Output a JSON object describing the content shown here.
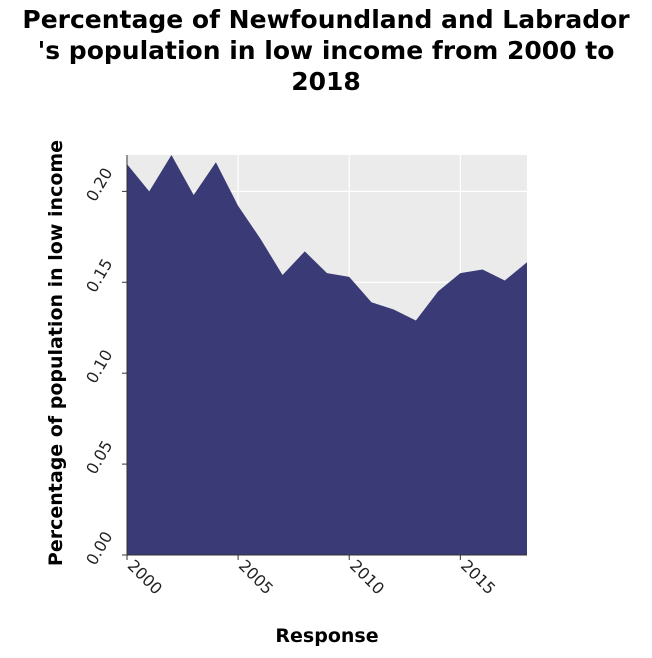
{
  "chart_data": {
    "type": "area",
    "title_lines": [
      "Percentage of Newfoundland and Labrador",
      "'s population in low income from 2000 to",
      "2018"
    ],
    "xlabel": "Response",
    "ylabel": "Percentage of population in low income",
    "xlim": [
      2000,
      2018
    ],
    "ylim": [
      0,
      0.22
    ],
    "x_ticks": [
      2000,
      2005,
      2010,
      2015
    ],
    "x_tick_labels": [
      "2000",
      "2005",
      "2010",
      "2015"
    ],
    "y_ticks": [
      0,
      0.05,
      0.1,
      0.15,
      0.2
    ],
    "y_tick_labels": [
      "0.00",
      "0.05",
      "0.10",
      "0.15",
      "0.20"
    ],
    "grid": true,
    "fill_color": "#393a76",
    "x": [
      2000,
      2001,
      2002,
      2003,
      2004,
      2005,
      2006,
      2007,
      2008,
      2009,
      2010,
      2011,
      2012,
      2013,
      2014,
      2015,
      2016,
      2017,
      2018
    ],
    "values": [
      0.215,
      0.2,
      0.22,
      0.198,
      0.216,
      0.192,
      0.174,
      0.154,
      0.167,
      0.155,
      0.153,
      0.139,
      0.135,
      0.129,
      0.145,
      0.155,
      0.157,
      0.151,
      0.161
    ]
  }
}
